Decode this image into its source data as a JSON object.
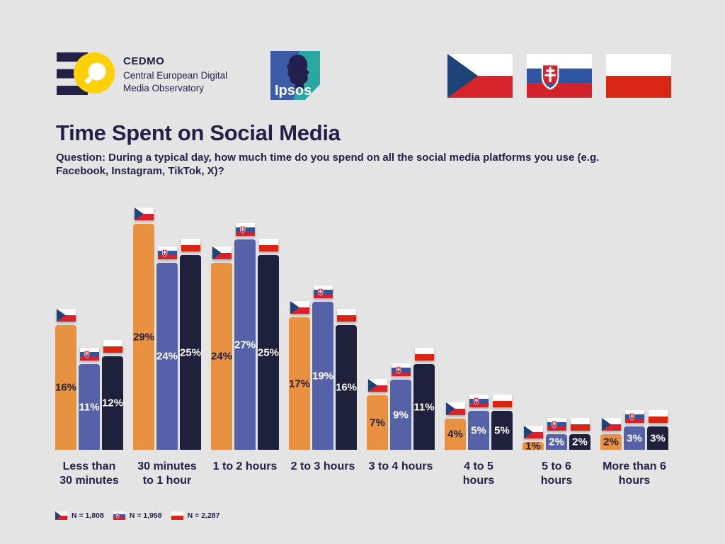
{
  "header": {
    "cedmo": {
      "acronym": "CEDMO",
      "name_line1": "Central European Digital",
      "name_line2": "Media Observatory"
    },
    "ipsos": {
      "label": "Ipsos"
    },
    "flags": [
      {
        "code": "cz",
        "name": "Czech Republic"
      },
      {
        "code": "sk",
        "name": "Slovakia"
      },
      {
        "code": "pl",
        "name": "Poland"
      }
    ]
  },
  "title": "Time Spent on Social Media",
  "subtitle": {
    "line1": "Question: During a typical day, how much time do you spend on all the social media platforms you use (e.g.",
    "line2": "Facebook, Instagram, TikTok, X)?"
  },
  "chart_data": {
    "type": "bar",
    "title": "Time Spent on Social Media",
    "categories": [
      "Less than 30 minutes",
      "30 minutes to 1 hour",
      "1 to 2 hours",
      "2 to 3 hours",
      "3 to 4 hours",
      "4 to 5 hours",
      "5 to 6 hours",
      "More than 6 hours"
    ],
    "category_lines": [
      [
        "Less than",
        "30 minutes"
      ],
      [
        "30 minutes",
        "to 1 hour"
      ],
      [
        "1 to 2 hours"
      ],
      [
        "2 to 3 hours"
      ],
      [
        "3 to 4 hours"
      ],
      [
        "4 to 5",
        "hours"
      ],
      [
        "5 to 6",
        "hours"
      ],
      [
        "More than 6",
        "hours"
      ]
    ],
    "series": [
      {
        "name": "Czech Republic",
        "flag": "cz",
        "color": "#E89140",
        "label_color": "#1E203C",
        "values": [
          16,
          29,
          24,
          17,
          7,
          4,
          1,
          2
        ]
      },
      {
        "name": "Slovakia",
        "flag": "sk",
        "color": "#5562A8",
        "label_color": "#FFFFFF",
        "values": [
          11,
          24,
          27,
          19,
          9,
          5,
          2,
          3
        ]
      },
      {
        "name": "Poland",
        "flag": "pl",
        "color": "#1E203C",
        "label_color": "#FFFFFF",
        "values": [
          12,
          25,
          25,
          16,
          11,
          5,
          2,
          3
        ]
      }
    ],
    "value_suffix": "%",
    "ylim": [
      0,
      30
    ],
    "grid": false,
    "legend_position": "bottom-left",
    "legend": [
      {
        "flag": "cz",
        "label": "N = 1,808"
      },
      {
        "flag": "sk",
        "label": "N = 1,958"
      },
      {
        "flag": "pl",
        "label": "N = 2,287"
      }
    ]
  },
  "colors": {
    "background": "#E5E4E5",
    "text_navy": "#232148",
    "orange": "#E89140",
    "periwinkle": "#5562A8",
    "navy": "#1E203C",
    "cedmo_yellow": "#FFD105",
    "ipsos_blue": "#3D5CA8",
    "ipsos_teal": "#29A7A2"
  }
}
